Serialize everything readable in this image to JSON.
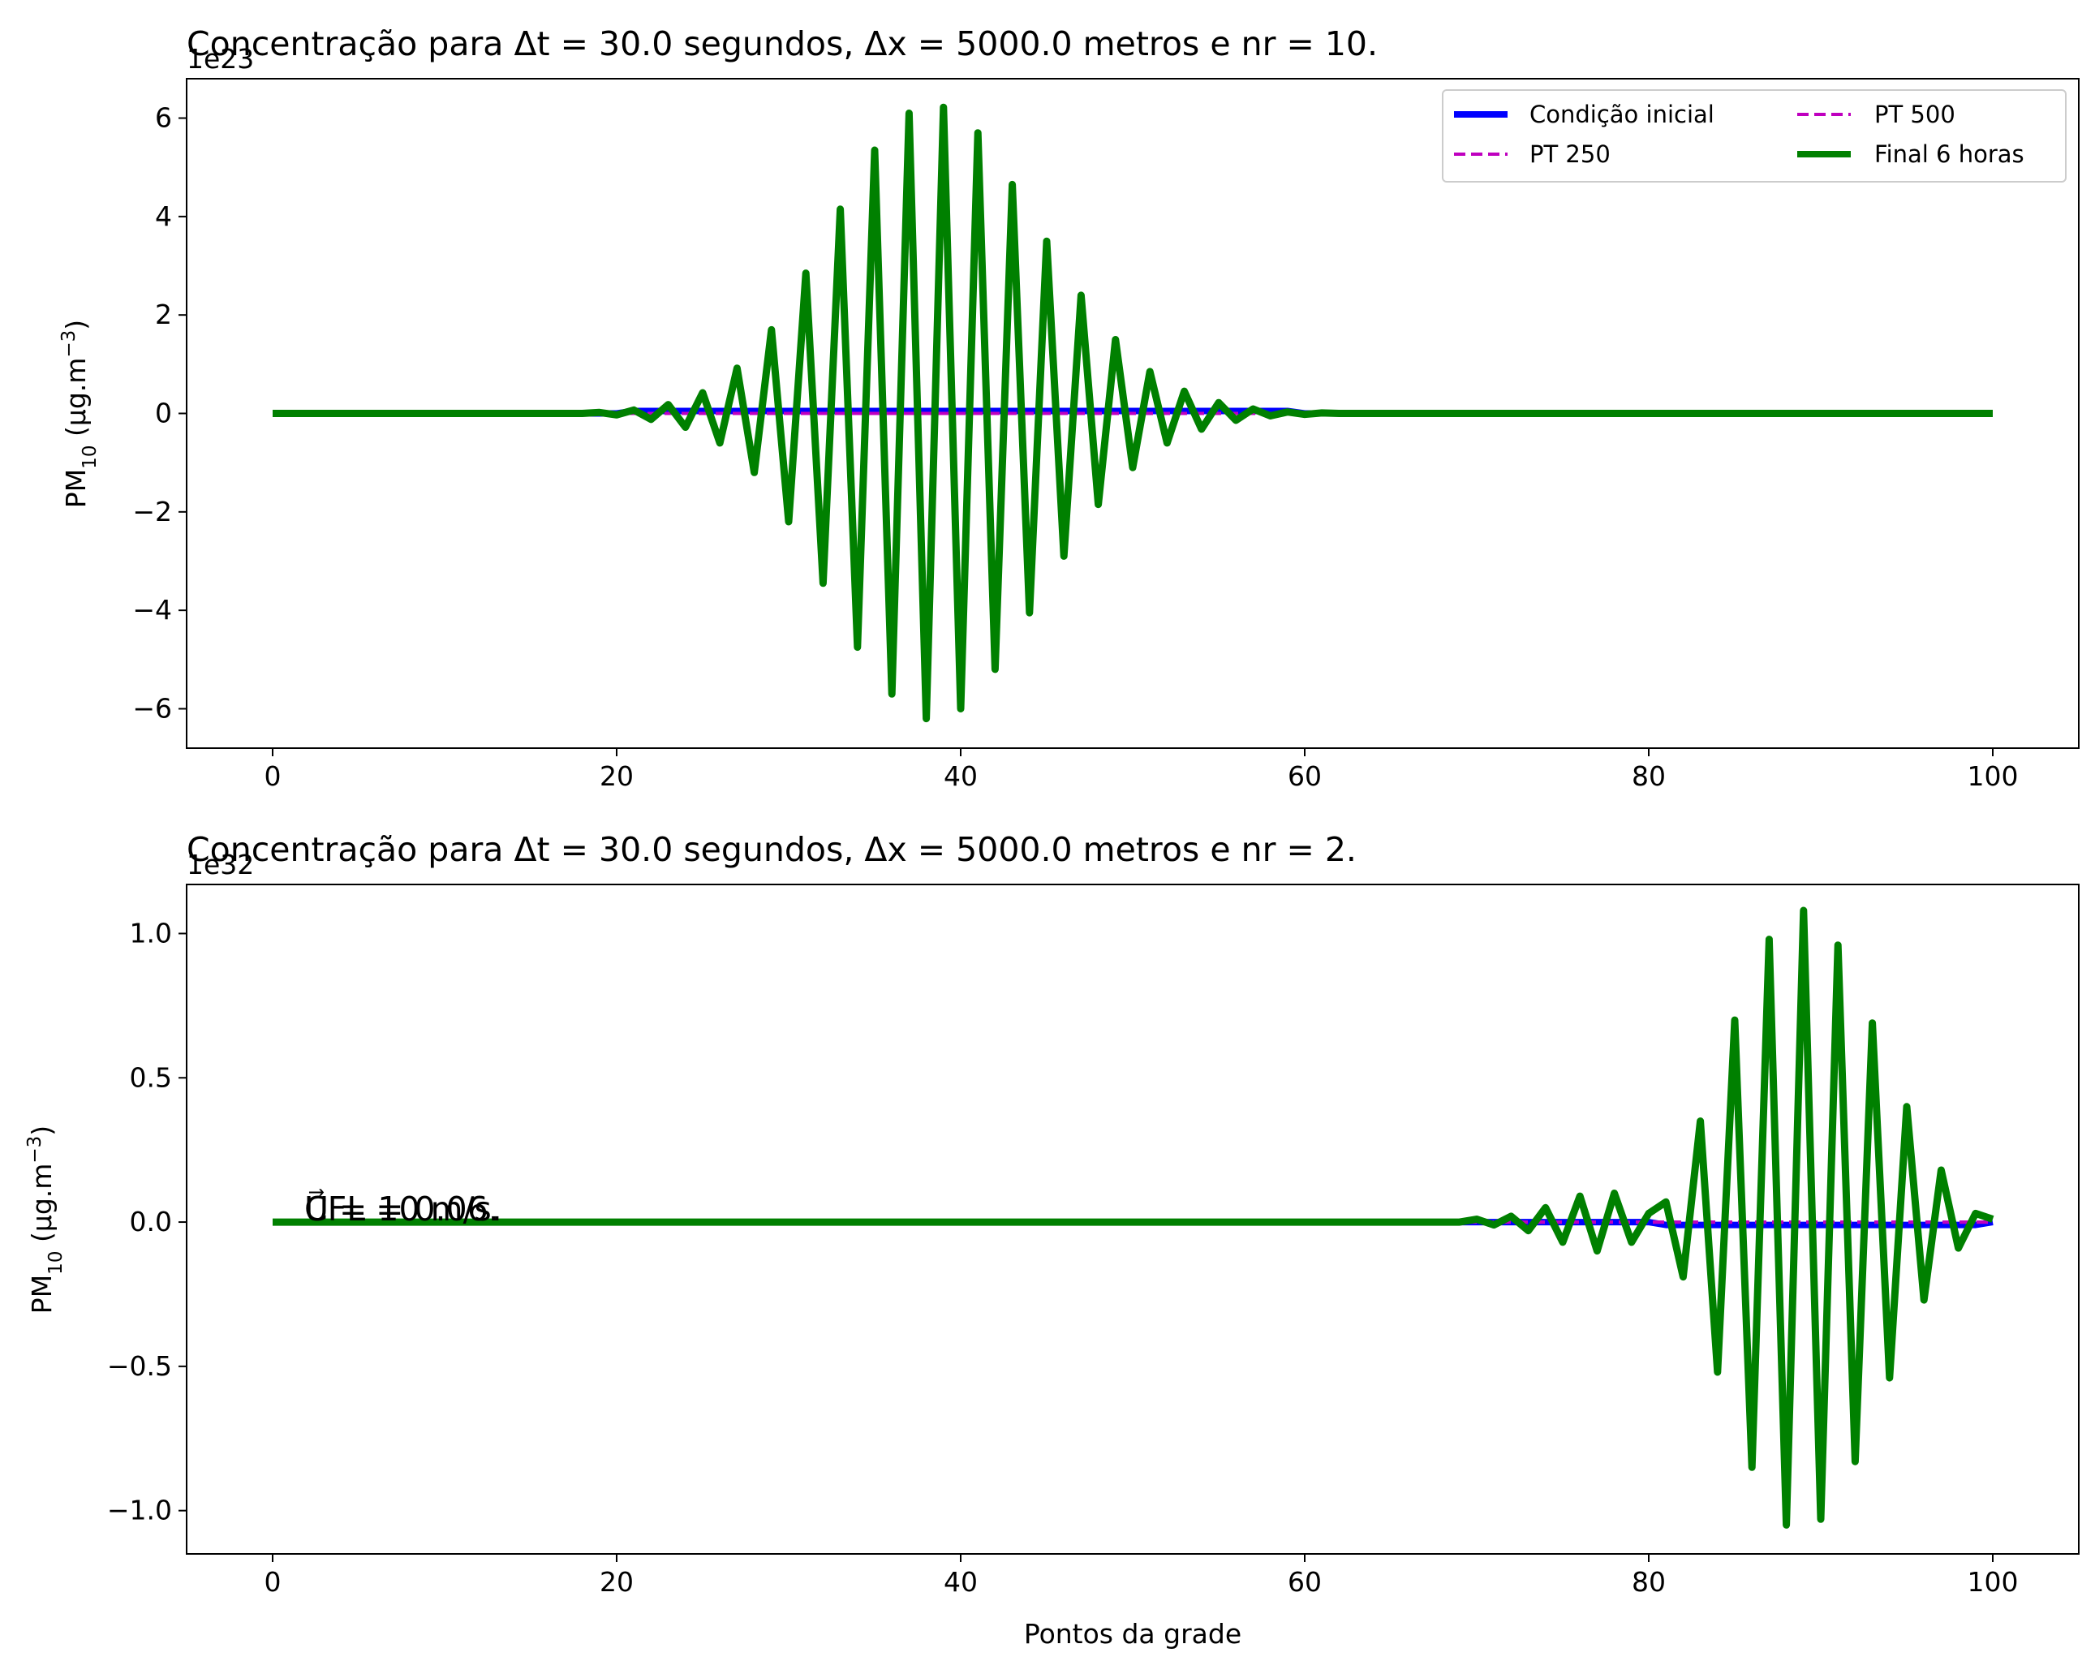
{
  "chart_data": [
    {
      "type": "line",
      "title": "Concentração para Δt = 30.0 segundos, Δx = 5000.0 metros e nr = 10.",
      "xlabel": "",
      "ylabel": "PM",
      "ylabel_sub": "10",
      "ylabel_unit": " (μg.m",
      "ylabel_sup": "−3",
      "ylabel_close": ")",
      "offset_label": "1e23",
      "xlim": [
        -5,
        105
      ],
      "ylim": [
        -6.8,
        6.8
      ],
      "xticks": [
        0,
        20,
        40,
        60,
        80,
        100
      ],
      "xtick_labels": [
        "0",
        "20",
        "40",
        "60",
        "80",
        "100"
      ],
      "yticks": [
        -6,
        -4,
        -2,
        0,
        2,
        4,
        6
      ],
      "ytick_labels": [
        "−6",
        "−4",
        "−2",
        "0",
        "2",
        "4",
        "6"
      ],
      "legend_placement": "upper-right",
      "legend": [
        {
          "label": "Condição inicial",
          "color": "#0000ff",
          "style": "solid"
        },
        {
          "label": "PT 500",
          "color": "#bf00bf",
          "style": "dashed"
        },
        {
          "label": "PT 250",
          "color": "#bf00bf",
          "style": "dashed"
        },
        {
          "label": "Final 6 horas",
          "color": "#008000",
          "style": "solid"
        }
      ],
      "series": [
        {
          "name": "Condição inicial",
          "color": "#0000ff",
          "style": "solid",
          "x": [
            0,
            20,
            21,
            59,
            60,
            100
          ],
          "y": [
            0,
            0,
            0.05,
            0.05,
            0,
            0
          ]
        },
        {
          "name": "PT 250",
          "color": "#bf00bf",
          "style": "dashed",
          "x": [
            0,
            100
          ],
          "y": [
            0,
            0
          ]
        },
        {
          "name": "PT 500",
          "color": "#bf00bf",
          "style": "dashed",
          "x": [
            0,
            100
          ],
          "y": [
            0,
            0
          ]
        },
        {
          "name": "Final 6 horas",
          "color": "#008000",
          "style": "solid",
          "x": [
            0,
            18,
            19,
            20,
            21,
            22,
            23,
            24,
            25,
            26,
            27,
            28,
            29,
            30,
            31,
            32,
            33,
            34,
            35,
            36,
            37,
            38,
            39,
            40,
            41,
            42,
            43,
            44,
            45,
            46,
            47,
            48,
            49,
            50,
            51,
            52,
            53,
            54,
            55,
            56,
            57,
            58,
            59,
            60,
            61,
            62,
            100
          ],
          "y": [
            0,
            0,
            0.02,
            -0.03,
            0.07,
            -0.12,
            0.18,
            -0.28,
            0.42,
            -0.6,
            0.92,
            -1.2,
            1.7,
            -2.2,
            2.85,
            -3.45,
            4.15,
            -4.75,
            5.35,
            -5.7,
            6.1,
            -6.2,
            6.22,
            -6.0,
            5.7,
            -5.2,
            4.65,
            -4.05,
            3.5,
            -2.9,
            2.4,
            -1.85,
            1.5,
            -1.1,
            0.85,
            -0.6,
            0.45,
            -0.32,
            0.22,
            -0.14,
            0.09,
            -0.05,
            0.03,
            -0.02,
            0.01,
            0,
            0
          ]
        }
      ]
    },
    {
      "type": "line",
      "title": "Concentração para Δt = 30.0 segundos, Δx = 5000.0 metros e nr = 2.",
      "xlabel": "Pontos da grade",
      "ylabel": "PM",
      "ylabel_sub": "10",
      "ylabel_unit": " (μg.m",
      "ylabel_sup": "−3",
      "ylabel_close": ")",
      "offset_label": "1e32",
      "xlim": [
        -5,
        105
      ],
      "ylim": [
        -1.15,
        1.17
      ],
      "xticks": [
        0,
        20,
        40,
        60,
        80,
        100
      ],
      "xtick_labels": [
        "0",
        "20",
        "40",
        "60",
        "80",
        "100"
      ],
      "yticks": [
        -1.0,
        -0.5,
        0.0,
        0.5,
        1.0
      ],
      "ytick_labels": [
        "−1.0",
        "−0.5",
        "0.0",
        "0.5",
        "1.0"
      ],
      "annotation_a": "U⃗ = 10 m/s.",
      "annotation_b": "CFL = 0.06.",
      "series": [
        {
          "name": "Condição inicial",
          "color": "#0000ff",
          "style": "solid",
          "x": [
            0,
            80,
            81,
            99,
            100
          ],
          "y": [
            0,
            0,
            -0.01,
            -0.01,
            0
          ]
        },
        {
          "name": "PT 250",
          "color": "#bf00bf",
          "style": "dashed",
          "x": [
            0,
            100
          ],
          "y": [
            0,
            0
          ]
        },
        {
          "name": "PT 500",
          "color": "#bf00bf",
          "style": "dashed",
          "x": [
            0,
            100
          ],
          "y": [
            0,
            0
          ]
        },
        {
          "name": "Final 6 horas",
          "color": "#008000",
          "style": "solid",
          "x": [
            0,
            69,
            70,
            71,
            72,
            73,
            74,
            75,
            76,
            77,
            78,
            79,
            80,
            81,
            82,
            83,
            84,
            85,
            86,
            87,
            88,
            89,
            90,
            91,
            92,
            93,
            94,
            95,
            96,
            97,
            98,
            99,
            100
          ],
          "y": [
            0,
            0,
            0.01,
            -0.01,
            0.02,
            -0.03,
            0.05,
            -0.07,
            0.09,
            -0.1,
            0.1,
            -0.07,
            0.03,
            0.07,
            -0.19,
            0.35,
            -0.52,
            0.7,
            -0.85,
            0.98,
            -1.05,
            1.08,
            -1.03,
            0.96,
            -0.83,
            0.69,
            -0.54,
            0.4,
            -0.27,
            0.18,
            -0.09,
            0.03,
            0.01
          ]
        }
      ]
    }
  ]
}
